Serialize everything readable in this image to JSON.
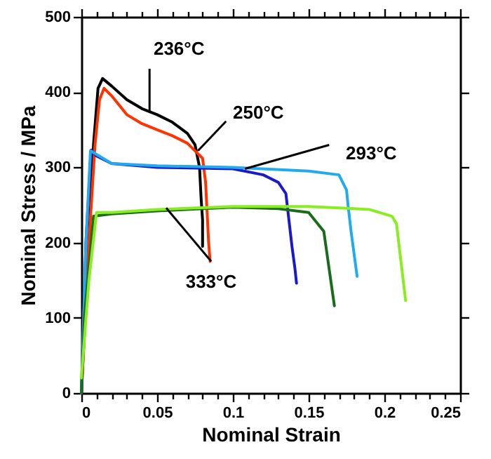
{
  "chart_data": {
    "type": "line",
    "xlabel": "Nominal Strain",
    "ylabel": "Nominal Stress / MPa",
    "xlim": [
      0,
      0.25
    ],
    "ylim": [
      0,
      500
    ],
    "xticks": [
      0,
      {
        "value": 0.01,
        "label": null
      },
      {
        "value": 0.02,
        "label": null
      },
      {
        "value": 0.03,
        "label": null
      },
      {
        "value": 0.04,
        "label": null
      },
      0.05,
      {
        "value": 0.06,
        "label": null
      },
      {
        "value": 0.07,
        "label": null
      },
      {
        "value": 0.08,
        "label": null
      },
      {
        "value": 0.09,
        "label": null
      },
      0.1,
      {
        "value": 0.11,
        "label": null
      },
      {
        "value": 0.12,
        "label": null
      },
      {
        "value": 0.13,
        "label": null
      },
      {
        "value": 0.14,
        "label": null
      },
      0.15,
      {
        "value": 0.16,
        "label": null
      },
      {
        "value": 0.17,
        "label": null
      },
      {
        "value": 0.18,
        "label": null
      },
      {
        "value": 0.19,
        "label": null
      },
      0.2,
      {
        "value": 0.21,
        "label": null
      },
      {
        "value": 0.22,
        "label": null
      },
      {
        "value": 0.23,
        "label": null
      },
      {
        "value": 0.24,
        "label": null
      },
      0.25
    ],
    "yticks": [
      0,
      100,
      200,
      300,
      400,
      500
    ],
    "grid": false,
    "marker": "none",
    "line_style": "solid",
    "series": [
      {
        "color": "#000000",
        "x": [
          0,
          0.005,
          0.008,
          0.011,
          0.014,
          0.02,
          0.03,
          0.04,
          0.05,
          0.06,
          0.07,
          0.075,
          0.078,
          0.079,
          0.08,
          0.08
        ],
        "values": [
          0,
          200,
          330,
          405,
          418,
          408,
          390,
          378,
          370,
          360,
          345,
          330,
          300,
          260,
          230,
          195
        ]
      },
      {
        "color": "#ff3300",
        "x": [
          0,
          0.005,
          0.009,
          0.012,
          0.015,
          0.02,
          0.03,
          0.04,
          0.05,
          0.06,
          0.07,
          0.075,
          0.08,
          0.082,
          0.083,
          0.084,
          0.085
        ],
        "values": [
          0,
          200,
          330,
          390,
          405,
          395,
          370,
          358,
          350,
          342,
          332,
          322,
          312,
          280,
          240,
          200,
          175
        ]
      },
      {
        "color": "#1a1acc",
        "x": [
          0,
          0.003,
          0.0065,
          0.01,
          0.02,
          0.05,
          0.1,
          0.12,
          0.13,
          0.135,
          0.137,
          0.139,
          0.141,
          0.142
        ],
        "values": [
          0,
          200,
          323,
          315,
          305,
          300,
          298,
          290,
          280,
          265,
          230,
          195,
          165,
          146
        ]
      },
      {
        "color": "#22aaee",
        "x": [
          0,
          0.003,
          0.006,
          0.02,
          0.05,
          0.1,
          0.15,
          0.17,
          0.175,
          0.176,
          0.178,
          0.18,
          0.182
        ],
        "values": [
          0,
          200,
          322,
          305,
          302,
          300,
          295,
          290,
          270,
          250,
          215,
          185,
          155
        ]
      },
      {
        "color": "#1a6b1a",
        "x": [
          0,
          0.002,
          0.008,
          0.02,
          0.05,
          0.1,
          0.13,
          0.15,
          0.158,
          0.16,
          0.167
        ],
        "values": [
          0,
          100,
          235,
          238,
          242,
          247,
          245,
          240,
          220,
          215,
          116
        ]
      },
      {
        "color": "#88ee22",
        "x": [
          0,
          0.005,
          0.01,
          0.02,
          0.05,
          0.1,
          0.15,
          0.19,
          0.205,
          0.208,
          0.214
        ],
        "values": [
          20,
          150,
          240,
          240,
          244,
          248,
          248,
          244,
          235,
          225,
          123
        ]
      }
    ],
    "annotations": [
      {
        "text": "236°C",
        "x": 0.045,
        "y": 375
      },
      {
        "text": "250°C",
        "x": 0.077,
        "y": 322
      },
      {
        "text": "293°C",
        "x": 0.108,
        "y": 298
      },
      {
        "text": "333°C",
        "x": 0.056,
        "y": 246
      }
    ]
  }
}
